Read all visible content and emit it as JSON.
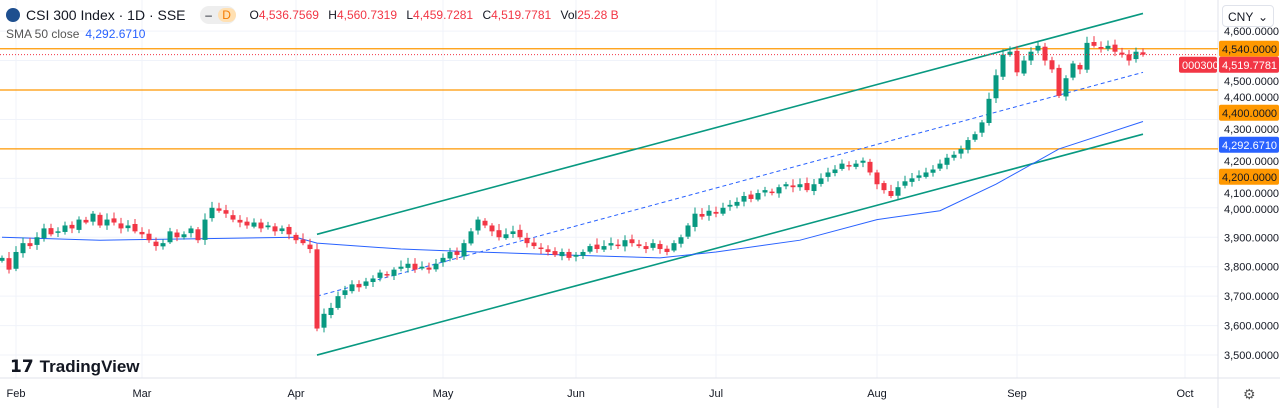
{
  "header": {
    "symbol": "CSI 300 Index · 1D · SSE",
    "o_label": "O",
    "o": "4,536.7569",
    "h_label": "H",
    "h": "4,560.7319",
    "l_label": "L",
    "l": "4,459.7281",
    "c_label": "C",
    "c": "4,519.7781",
    "vol_label": "Vol",
    "vol": "25.28 B",
    "interval_badge": "D"
  },
  "indicator": {
    "label": "SMA 50 close",
    "value": "4,292.6710"
  },
  "currency": "CNY",
  "watermark": "TradingView",
  "price_tags": {
    "symbol_tag": "000300",
    "close": "4,519.7781",
    "hl_4540": "4,540.0000",
    "hl_4400": "4,400.0000",
    "sma": "4,292.6710",
    "hl_4200": "4,200.0000"
  },
  "colors": {
    "up": "#089981",
    "down": "#f23645",
    "sma": "#2962ff",
    "hline": "#ff9800",
    "channel": "#089981"
  },
  "chart_data": {
    "type": "candlestick",
    "title": "CSI 300 Index · 1D · SSE",
    "ylim": [
      3470,
      4660
    ],
    "yticks": [
      "3,500.0000",
      "3,600.0000",
      "3,700.0000",
      "3,800.0000",
      "3,900.0000",
      "4,000.0000",
      "4,100.0000",
      "4,200.0000",
      "4,300.0000",
      "4,400.0000",
      "4,500.0000",
      "4,600.0000"
    ],
    "ytick_values": [
      3500,
      3600,
      3700,
      3800,
      3900,
      4000,
      4100,
      4200,
      4300,
      4400,
      4500,
      4600
    ],
    "xticks": [
      {
        "label": "Feb",
        "i": 2
      },
      {
        "label": "Mar",
        "i": 20
      },
      {
        "label": "Apr",
        "i": 42
      },
      {
        "label": "May",
        "i": 63
      },
      {
        "label": "Jun",
        "i": 82
      },
      {
        "label": "Jul",
        "i": 102
      },
      {
        "label": "Aug",
        "i": 125
      },
      {
        "label": "Sep",
        "i": 145
      },
      {
        "label": "Oct",
        "i": 169
      }
    ],
    "close": [
      3830,
      3790,
      3850,
      3880,
      3870,
      3900,
      3930,
      3910,
      3920,
      3940,
      3930,
      3960,
      3950,
      3980,
      3940,
      3960,
      3950,
      3930,
      3940,
      3920,
      3910,
      3890,
      3870,
      3880,
      3920,
      3900,
      3910,
      3930,
      3890,
      3960,
      4000,
      3990,
      3980,
      3960,
      3950,
      3940,
      3950,
      3930,
      3940,
      3920,
      3930,
      3910,
      3890,
      3880,
      3860,
      3590,
      3640,
      3660,
      3700,
      3720,
      3740,
      3730,
      3750,
      3760,
      3780,
      3770,
      3790,
      3800,
      3810,
      3790,
      3800,
      3790,
      3810,
      3830,
      3850,
      3840,
      3880,
      3920,
      3960,
      3940,
      3920,
      3900,
      3910,
      3920,
      3900,
      3880,
      3870,
      3860,
      3850,
      3840,
      3850,
      3830,
      3840,
      3850,
      3870,
      3860,
      3870,
      3880,
      3870,
      3890,
      3880,
      3870,
      3860,
      3880,
      3860,
      3850,
      3880,
      3900,
      3940,
      3980,
      3970,
      3990,
      3980,
      4000,
      4010,
      4020,
      4040,
      4030,
      4050,
      4060,
      4050,
      4070,
      4080,
      4070,
      4080,
      4060,
      4080,
      4100,
      4120,
      4130,
      4150,
      4140,
      4150,
      4160,
      4120,
      4080,
      4060,
      4040,
      4070,
      4090,
      4100,
      4110,
      4120,
      4130,
      4150,
      4170,
      4180,
      4200,
      4230,
      4250,
      4290,
      4370,
      4450,
      4520,
      4530,
      4460,
      4500,
      4530,
      4550,
      4500,
      4470,
      4380,
      4440,
      4490,
      4470,
      4560,
      4550,
      4540,
      4550,
      4530,
      4520,
      4500,
      4530,
      4520
    ],
    "sma50": [
      [
        0,
        3900
      ],
      [
        14,
        3890
      ],
      [
        28,
        3895
      ],
      [
        42,
        3900
      ],
      [
        45,
        3880
      ],
      [
        57,
        3860
      ],
      [
        68,
        3850
      ],
      [
        80,
        3840
      ],
      [
        94,
        3830
      ],
      [
        102,
        3850
      ],
      [
        114,
        3890
      ],
      [
        125,
        3960
      ],
      [
        134,
        3990
      ],
      [
        142,
        4080
      ],
      [
        151,
        4200
      ],
      [
        163,
        4293
      ]
    ],
    "hlines": [
      4540,
      4400,
      4200
    ],
    "channel_upper": [
      [
        45,
        3910
      ],
      [
        163,
        4660
      ]
    ],
    "channel_lower": [
      [
        45,
        3500
      ],
      [
        163,
        4250
      ]
    ],
    "channel_mid": [
      [
        45,
        3700
      ],
      [
        163,
        4460
      ]
    ]
  }
}
